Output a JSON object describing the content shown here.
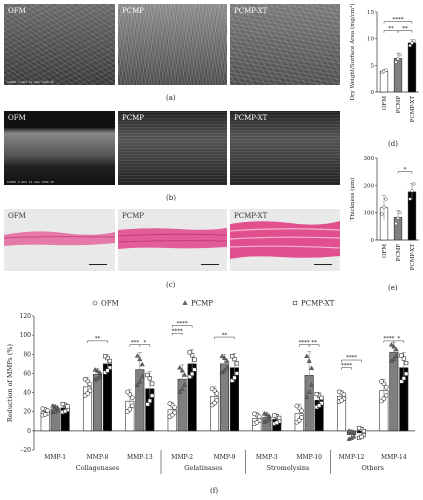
{
  "panels": {
    "a": {
      "caption": "(a)",
      "images": [
        {
          "label": "OFM",
          "footer": "S3000 5.0kV 12.2mm x500 SE"
        },
        {
          "label": "PCMP",
          "footer": ""
        },
        {
          "label": "PCMP-XT",
          "footer": ""
        }
      ]
    },
    "b": {
      "caption": "(b)",
      "images": [
        {
          "label": "OFM",
          "footer": "S3000 5.0kV 12.2mm x500 SE"
        },
        {
          "label": "PCMP",
          "footer": ""
        },
        {
          "label": "PCMP-XT",
          "footer": ""
        }
      ]
    },
    "c": {
      "caption": "(c)",
      "images": [
        {
          "label": "OFM"
        },
        {
          "label": "PCMP"
        },
        {
          "label": "PCMP-XT"
        }
      ]
    },
    "d": {
      "caption": "(d)"
    },
    "e": {
      "caption": "(e)"
    },
    "f": {
      "caption": "(f)"
    }
  },
  "chart_data": [
    {
      "id": "d",
      "type": "bar",
      "categories": [
        "OFM",
        "PCMP",
        "PCMP-XT"
      ],
      "values": [
        3.9,
        6.3,
        9.2
      ],
      "errors": [
        0.3,
        1.0,
        0.6
      ],
      "points": [
        [
          3.7,
          3.9,
          4.1
        ],
        [
          5.6,
          6.2,
          7.0
        ],
        [
          8.7,
          9.2,
          9.6
        ]
      ],
      "colors": [
        "#ffffff",
        "#7f7f7f",
        "#000000"
      ],
      "xlabel": "",
      "ylabel": "Dry Weight/Surface Area (mg/cm²)",
      "ylim": [
        0,
        15
      ],
      "yticks": [
        "0",
        "5",
        "10",
        "15"
      ],
      "significance": [
        {
          "from": 0,
          "to": 1,
          "label": "**",
          "level": 11.5
        },
        {
          "from": 1,
          "to": 2,
          "label": "**",
          "level": 11.5
        },
        {
          "from": 0,
          "to": 2,
          "label": "****",
          "level": 13.2
        }
      ]
    },
    {
      "id": "e",
      "type": "bar",
      "categories": [
        "OFM",
        "PCMP",
        "PCMP-XT"
      ],
      "values": [
        118,
        83,
        176
      ],
      "errors": [
        45,
        25,
        30
      ],
      "points": [
        [
          95,
          120,
          150
        ],
        [
          60,
          80,
          100
        ],
        [
          150,
          180,
          205
        ]
      ],
      "colors": [
        "#ffffff",
        "#7f7f7f",
        "#000000"
      ],
      "xlabel": "",
      "ylabel": "Thickness (μm)",
      "ylim": [
        0,
        300
      ],
      "yticks": [
        "0",
        "100",
        "200",
        "300"
      ],
      "significance": [
        {
          "from": 1,
          "to": 2,
          "label": "*",
          "level": 250
        }
      ]
    },
    {
      "id": "f",
      "type": "bar",
      "ylabel": "Reduction of MMPs (%)",
      "ylim": [
        -20,
        120
      ],
      "yticks": [
        "–20",
        "0",
        "20",
        "40",
        "60",
        "80",
        "100",
        "120"
      ],
      "legend": [
        "OFM",
        "PCMP",
        "PCMP-XT"
      ],
      "legend_placement": "top",
      "colors": [
        "#ffffff",
        "#7f7f7f",
        "#000000"
      ],
      "categories": [
        "MMP-1",
        "MMP-8",
        "MMP-13",
        "MMP-2",
        "MMP-9",
        "MMP-3",
        "MMP-10",
        "MMP-12",
        "MMP-14"
      ],
      "groups": [
        {
          "label": "Collagenases",
          "members": [
            0,
            1,
            2
          ]
        },
        {
          "label": "Gelatinases",
          "members": [
            3,
            4
          ]
        },
        {
          "label": "Stromelysins",
          "members": [
            5,
            6
          ]
        },
        {
          "label": "Others",
          "members": [
            7,
            8
          ]
        }
      ],
      "series": [
        {
          "name": "OFM",
          "values": [
            20,
            46,
            31,
            22,
            36,
            13,
            18,
            36,
            42
          ],
          "errors": [
            4,
            10,
            12,
            8,
            10,
            6,
            10,
            6,
            12
          ]
        },
        {
          "name": "PCMP",
          "values": [
            23,
            59,
            64,
            54,
            70,
            14,
            58,
            -4,
            82
          ],
          "errors": [
            4,
            6,
            18,
            15,
            10,
            5,
            25,
            5,
            10
          ]
        },
        {
          "name": "PCMP-XT",
          "values": [
            24,
            70,
            44,
            70,
            66,
            12,
            32,
            -2,
            66
          ],
          "errors": [
            5,
            10,
            18,
            15,
            15,
            5,
            8,
            6,
            16
          ]
        }
      ],
      "significance": [
        {
          "category": 1,
          "from": 0,
          "to": 2,
          "label": "**",
          "level": 94
        },
        {
          "category": 2,
          "from": 0,
          "to": 1,
          "label": "***",
          "level": 90
        },
        {
          "category": 2,
          "from": 1,
          "to": 2,
          "label": "*",
          "level": 90
        },
        {
          "category": 3,
          "from": 0,
          "to": 1,
          "label": "****",
          "level": 102
        },
        {
          "category": 3,
          "from": 0,
          "to": 2,
          "label": "****",
          "level": 110
        },
        {
          "category": 4,
          "from": 0,
          "to": 2,
          "label": "**",
          "level": 98
        },
        {
          "category": 6,
          "from": 0,
          "to": 1,
          "label": "****",
          "level": 90
        },
        {
          "category": 6,
          "from": 1,
          "to": 2,
          "label": "**",
          "level": 90
        },
        {
          "category": 7,
          "from": 0,
          "to": 1,
          "label": "****",
          "level": 66
        },
        {
          "category": 7,
          "from": 0,
          "to": 2,
          "label": "****",
          "level": 74
        },
        {
          "category": 8,
          "from": 0,
          "to": 1,
          "label": "****",
          "level": 94
        },
        {
          "category": 8,
          "from": 1,
          "to": 2,
          "label": "*",
          "level": 94
        }
      ]
    }
  ]
}
